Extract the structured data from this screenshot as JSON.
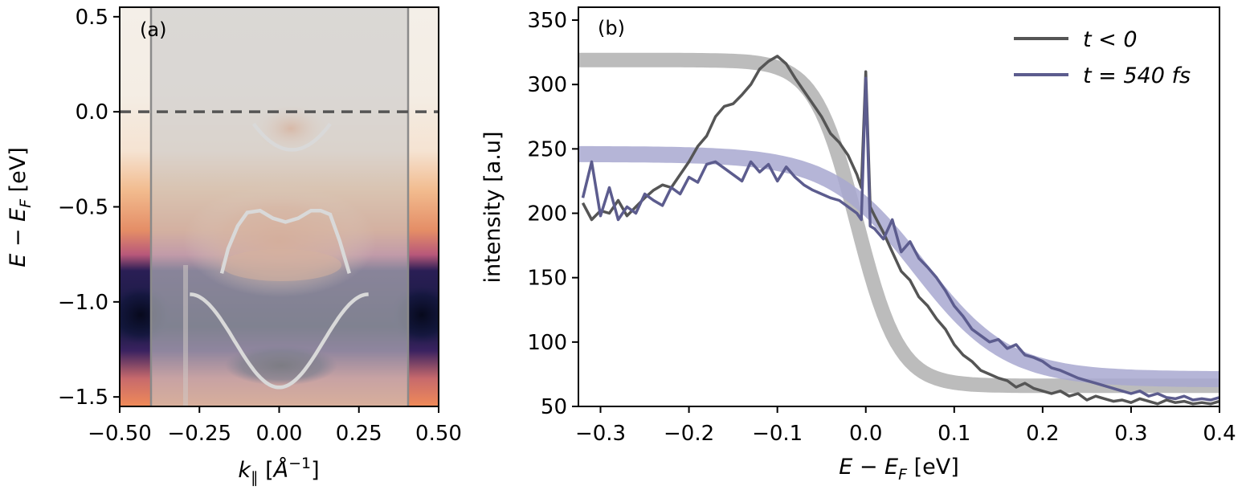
{
  "chart_data": [
    {
      "panel": "(a)",
      "type": "heatmap",
      "title": "",
      "xlabel_main": "k",
      "xlabel_sub": "∥",
      "xlabel_unit_open": " [",
      "xlabel_unit": "Å",
      "xlabel_unit_exp": "−1",
      "xlabel_unit_close": "]",
      "ylabel_main": "E − E",
      "ylabel_sub": "F",
      "ylabel_unit": " [eV]",
      "xlim": [
        -0.5,
        0.5
      ],
      "ylim": [
        -1.55,
        0.55
      ],
      "xticks": [
        -0.5,
        -0.25,
        0.0,
        0.25,
        0.5
      ],
      "xtick_labels": [
        "−0.50",
        "−0.25",
        "0.00",
        "0.25",
        "0.50"
      ],
      "yticks": [
        0.5,
        0.0,
        -0.5,
        -1.0,
        -1.5
      ],
      "ytick_labels": [
        "0.5",
        "0.0",
        "−0.5",
        "−1.0",
        "−1.5"
      ],
      "fermi_level": 0.0,
      "shaded_k_range": [
        -0.4,
        0.4
      ],
      "bands": [
        {
          "name": "conduction-band",
          "k_range": [
            -0.08,
            0.16
          ],
          "center": 0.04,
          "min": -0.2,
          "curvature": 9.5
        },
        {
          "name": "m-shaped-band",
          "k": [
            -0.18,
            -0.16,
            -0.13,
            -0.1,
            -0.06,
            -0.02,
            0.02,
            0.06,
            0.1,
            0.13,
            0.16,
            0.19,
            0.22
          ],
          "E": [
            -0.85,
            -0.72,
            -0.6,
            -0.53,
            -0.52,
            -0.56,
            -0.58,
            -0.56,
            -0.52,
            -0.52,
            -0.54,
            -0.68,
            -0.85
          ]
        },
        {
          "name": "valence-band",
          "k_range": [
            -0.28,
            0.28
          ],
          "center": 0.0,
          "min": -1.45,
          "max": -0.96,
          "period": 0.56
        }
      ]
    },
    {
      "panel": "(b)",
      "type": "line",
      "title": "",
      "xlabel_main": "E − E",
      "xlabel_sub": "F",
      "xlabel_unit": " [eV]",
      "ylabel": "intensity [a.u]",
      "xlim": [
        -0.325,
        0.4
      ],
      "ylim": [
        50,
        360
      ],
      "xticks": [
        -0.3,
        -0.2,
        -0.1,
        0.0,
        0.1,
        0.2,
        0.3,
        0.4
      ],
      "xtick_labels": [
        "−0.3",
        "−0.2",
        "−0.1",
        "0.0",
        "0.1",
        "0.2",
        "0.3",
        "0.4"
      ],
      "yticks": [
        50,
        100,
        150,
        200,
        250,
        300,
        350
      ],
      "ytick_labels": [
        "50",
        "100",
        "150",
        "200",
        "250",
        "300",
        "350"
      ],
      "legend_position": "top-right",
      "series": [
        {
          "name": "t < 0",
          "legend_label": "t < 0",
          "color": "#555555",
          "fit_color": "#b0b0b0",
          "fit": {
            "type": "fermi-dirac",
            "amplitude": 253,
            "offset": 66,
            "mu": -0.01,
            "kT": 0.024
          },
          "x": [
            -0.32,
            -0.31,
            -0.3,
            -0.29,
            -0.28,
            -0.27,
            -0.26,
            -0.25,
            -0.24,
            -0.23,
            -0.22,
            -0.21,
            -0.2,
            -0.19,
            -0.18,
            -0.17,
            -0.16,
            -0.15,
            -0.14,
            -0.13,
            -0.12,
            -0.11,
            -0.1,
            -0.09,
            -0.08,
            -0.07,
            -0.06,
            -0.05,
            -0.04,
            -0.03,
            -0.02,
            -0.01,
            -0.005,
            0.0,
            0.005,
            0.01,
            0.02,
            0.03,
            0.04,
            0.05,
            0.06,
            0.07,
            0.08,
            0.09,
            0.1,
            0.11,
            0.12,
            0.13,
            0.14,
            0.15,
            0.16,
            0.17,
            0.18,
            0.19,
            0.2,
            0.21,
            0.22,
            0.23,
            0.24,
            0.25,
            0.26,
            0.27,
            0.28,
            0.29,
            0.3,
            0.31,
            0.32,
            0.33,
            0.34,
            0.35,
            0.36,
            0.37,
            0.38,
            0.39,
            0.4
          ],
          "y": [
            208,
            195,
            202,
            200,
            210,
            198,
            205,
            212,
            218,
            222,
            220,
            230,
            240,
            252,
            260,
            275,
            283,
            285,
            292,
            300,
            312,
            318,
            322,
            316,
            305,
            295,
            285,
            275,
            262,
            255,
            245,
            230,
            220,
            310,
            205,
            198,
            185,
            170,
            155,
            148,
            135,
            128,
            118,
            110,
            98,
            90,
            85,
            78,
            75,
            72,
            70,
            65,
            68,
            64,
            62,
            60,
            62,
            58,
            60,
            55,
            58,
            56,
            54,
            55,
            53,
            56,
            54,
            52,
            55,
            53,
            54,
            52,
            53,
            52,
            54
          ]
        },
        {
          "name": "t = 540 fs",
          "legend_label": "t = 540 fs",
          "color": "#5c5c8e",
          "fit_color": "#a8a8d0",
          "fit": {
            "type": "fermi-dirac",
            "amplitude": 175,
            "offset": 71,
            "mu": 0.06,
            "kT": 0.05
          },
          "x": [
            -0.32,
            -0.31,
            -0.3,
            -0.29,
            -0.28,
            -0.27,
            -0.26,
            -0.25,
            -0.24,
            -0.23,
            -0.22,
            -0.21,
            -0.2,
            -0.19,
            -0.18,
            -0.17,
            -0.16,
            -0.15,
            -0.14,
            -0.13,
            -0.12,
            -0.11,
            -0.1,
            -0.09,
            -0.08,
            -0.07,
            -0.06,
            -0.05,
            -0.04,
            -0.03,
            -0.02,
            -0.01,
            -0.005,
            0.0,
            0.005,
            0.01,
            0.02,
            0.03,
            0.04,
            0.05,
            0.06,
            0.07,
            0.08,
            0.09,
            0.1,
            0.11,
            0.12,
            0.13,
            0.14,
            0.15,
            0.16,
            0.17,
            0.18,
            0.19,
            0.2,
            0.21,
            0.22,
            0.23,
            0.24,
            0.25,
            0.26,
            0.27,
            0.28,
            0.29,
            0.3,
            0.31,
            0.32,
            0.33,
            0.34,
            0.35,
            0.36,
            0.37,
            0.38,
            0.39,
            0.4
          ],
          "y": [
            212,
            240,
            198,
            220,
            195,
            205,
            200,
            215,
            210,
            206,
            220,
            215,
            228,
            224,
            238,
            240,
            235,
            230,
            225,
            240,
            232,
            238,
            225,
            236,
            228,
            222,
            218,
            215,
            212,
            210,
            205,
            200,
            195,
            305,
            190,
            188,
            180,
            195,
            170,
            178,
            165,
            158,
            150,
            140,
            128,
            120,
            110,
            105,
            100,
            102,
            95,
            98,
            90,
            88,
            85,
            80,
            78,
            75,
            72,
            70,
            68,
            66,
            64,
            62,
            60,
            62,
            58,
            60,
            57,
            56,
            58,
            55,
            56,
            55,
            57
          ]
        }
      ]
    }
  ]
}
